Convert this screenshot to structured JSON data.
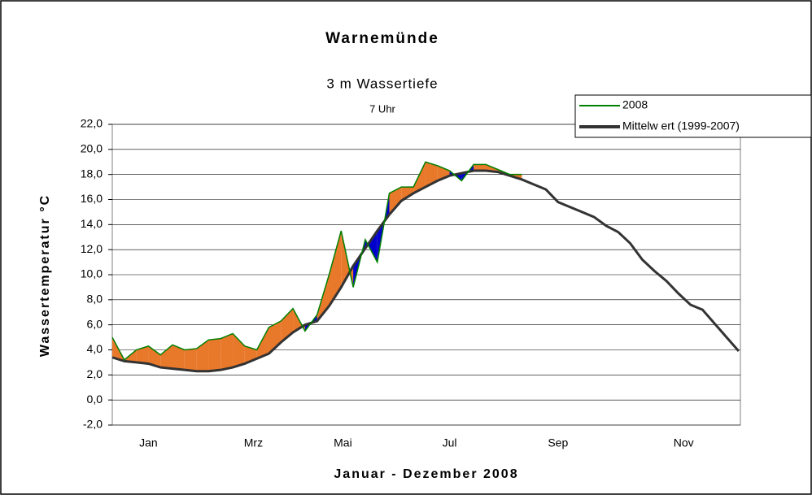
{
  "chart_data": {
    "type": "line",
    "title": "Warnemünde",
    "subtitle": "3 m Wassertiefe",
    "note": "7 Uhr",
    "ylabel": "Wassertemperatur °C",
    "xlabel": "Januar - Dezember 2008",
    "x": [
      1,
      8,
      15,
      22,
      29,
      36,
      43,
      50,
      57,
      64,
      71,
      78,
      85,
      92,
      99,
      106,
      113,
      120,
      127,
      134,
      141,
      148,
      155,
      162,
      169,
      176,
      183,
      190,
      197,
      204,
      211,
      218,
      225,
      232,
      239,
      246,
      253,
      260,
      267,
      274,
      281,
      288,
      295,
      302,
      309,
      316,
      323,
      330,
      337,
      344,
      351,
      358,
      365
    ],
    "series": [
      {
        "name": "2008",
        "color": "#008000",
        "values": [
          5.0,
          3.2,
          4.0,
          4.3,
          3.6,
          4.4,
          4.0,
          4.1,
          4.8,
          4.9,
          5.3,
          4.3,
          4.0,
          5.8,
          6.3,
          7.3,
          5.5,
          6.8,
          10.0,
          13.5,
          9.0,
          12.8,
          11.0,
          16.5,
          17.0,
          17.0,
          19.0,
          18.7,
          18.3,
          17.5,
          18.8,
          18.8,
          18.4,
          18.0,
          18.0,
          null,
          null,
          null,
          null,
          null,
          null,
          null,
          null,
          null,
          null,
          null,
          null,
          null,
          null,
          null,
          null,
          null,
          null
        ]
      },
      {
        "name": "Mittelw ert (1999-2007)",
        "color": "#333333",
        "values": [
          3.4,
          3.1,
          3.0,
          2.9,
          2.6,
          2.5,
          2.4,
          2.3,
          2.3,
          2.4,
          2.6,
          2.9,
          3.3,
          3.7,
          4.6,
          5.4,
          6.0,
          6.3,
          7.5,
          9.0,
          10.7,
          12.1,
          13.5,
          14.8,
          15.9,
          16.5,
          17.0,
          17.5,
          17.9,
          18.1,
          18.3,
          18.3,
          18.2,
          17.9,
          17.6,
          17.2,
          16.8,
          15.8,
          15.4,
          15.0,
          14.6,
          13.9,
          13.4,
          12.5,
          11.2,
          10.3,
          9.5,
          8.5,
          7.6,
          7.2,
          6.1,
          5.0,
          3.9
        ]
      }
    ],
    "above_color": "#e8782a",
    "below_color": "#0000cc",
    "xlim": [
      1,
      366
    ],
    "xticks": [
      {
        "value": 22,
        "label": "Jan"
      },
      {
        "value": 83,
        "label": "Mrz"
      },
      {
        "value": 135,
        "label": "Mai"
      },
      {
        "value": 197,
        "label": "Jul"
      },
      {
        "value": 260,
        "label": "Sep"
      },
      {
        "value": 333,
        "label": "Nov"
      }
    ],
    "ylim": [
      -2,
      22
    ],
    "yticks": [
      {
        "value": -2,
        "label": "-2,0"
      },
      {
        "value": 0,
        "label": "0,0"
      },
      {
        "value": 2,
        "label": "2,0"
      },
      {
        "value": 4,
        "label": "4,0"
      },
      {
        "value": 6,
        "label": "6,0"
      },
      {
        "value": 8,
        "label": "8,0"
      },
      {
        "value": 10,
        "label": "10,0"
      },
      {
        "value": 12,
        "label": "12,0"
      },
      {
        "value": 14,
        "label": "14,0"
      },
      {
        "value": 16,
        "label": "16,0"
      },
      {
        "value": 18,
        "label": "18,0"
      },
      {
        "value": 20,
        "label": "20,0"
      },
      {
        "value": 22,
        "label": "22,0"
      }
    ],
    "grid": true,
    "legend": "top-right"
  }
}
